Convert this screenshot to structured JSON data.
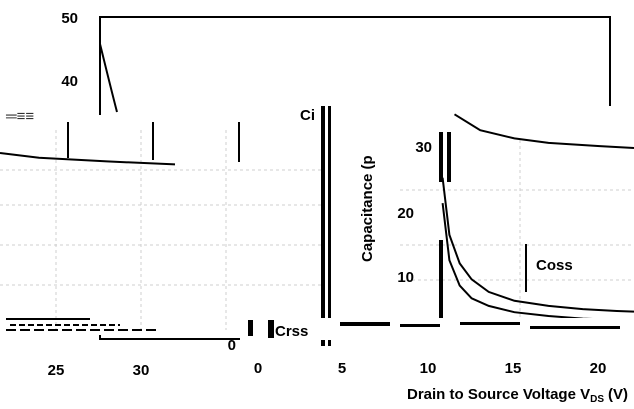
{
  "chart_data": [
    {
      "type": "line",
      "name": "main-chart",
      "xlabel": "Drain to Source Voltage V",
      "xlabel_sub": "DS",
      "xlabel_unit": "(V)",
      "x_ticks": [
        0,
        5,
        10,
        15,
        20
      ],
      "y_ticks_left": [
        40,
        50
      ],
      "y_tick_zero": "0",
      "xlim": [
        0,
        22
      ],
      "ylim": [
        0,
        50
      ],
      "series": [
        {
          "name": "Ciss",
          "x": [
            0,
            22
          ],
          "y": [
            50,
            50
          ]
        }
      ]
    },
    {
      "type": "line",
      "name": "inset-right",
      "ylabel": "Capacitance (p",
      "y_ticks": [
        10,
        20,
        30
      ],
      "xlim": [
        0,
        22
      ],
      "ylim": [
        0,
        35
      ],
      "series": [
        {
          "name": "Ciss",
          "x": [
            11.5,
            13,
            15,
            17,
            20,
            22
          ],
          "y": [
            34,
            31.5,
            30.2,
            29.5,
            29,
            28.7
          ]
        },
        {
          "name": "Coss",
          "x": [
            10.8,
            11.2,
            11.8,
            12.5,
            13.5,
            15,
            17,
            19,
            21,
            22
          ],
          "y": [
            24,
            15,
            10.5,
            8,
            6,
            4.6,
            3.8,
            3.3,
            3,
            2.9
          ]
        },
        {
          "name": "Crss",
          "x": [
            10.8,
            11.2,
            11.8,
            12.5,
            13.5,
            15,
            17,
            19,
            21,
            22
          ],
          "y": [
            20,
            11,
            7,
            5,
            3.8,
            2.8,
            2.2,
            1.8,
            1.6,
            1.5
          ]
        }
      ],
      "labels": {
        "coss": "Coss",
        "value_30": "30"
      }
    },
    {
      "type": "line",
      "name": "inset-left",
      "x_ticks": [
        25,
        30
      ],
      "series": [
        {
          "name": "Ciss",
          "x": [
            20,
            24,
            28,
            32
          ],
          "y": [
            30,
            29.2,
            28.6,
            28.1
          ]
        }
      ],
      "labels": {
        "crss": "Crss",
        "ciss_partial": "Ci"
      }
    }
  ]
}
